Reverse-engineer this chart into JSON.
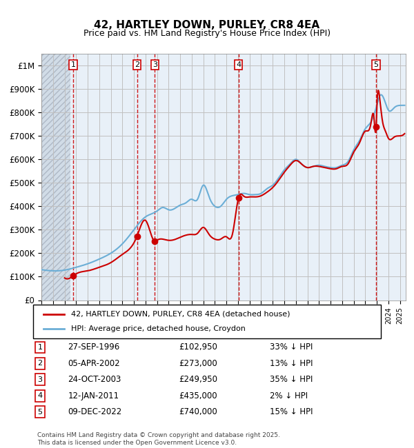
{
  "title": "42, HARTLEY DOWN, PURLEY, CR8 4EA",
  "subtitle": "Price paid vs. HM Land Registry's House Price Index (HPI)",
  "legend_line1": "42, HARTLEY DOWN, PURLEY, CR8 4EA (detached house)",
  "legend_line2": "HPI: Average price, detached house, Croydon",
  "footer_line1": "Contains HM Land Registry data © Crown copyright and database right 2025.",
  "footer_line2": "This data is licensed under the Open Government Licence v3.0.",
  "transactions": [
    {
      "num": 1,
      "date": "27-SEP-1996",
      "price": 102950,
      "pct": "33%",
      "dir": "↓"
    },
    {
      "num": 2,
      "date": "05-APR-2002",
      "price": 273000,
      "pct": "13%",
      "dir": "↓"
    },
    {
      "num": 3,
      "date": "24-OCT-2003",
      "price": 249950,
      "pct": "35%",
      "dir": "↓"
    },
    {
      "num": 4,
      "date": "12-JAN-2011",
      "price": 435000,
      "pct": "2%",
      "dir": "↓"
    },
    {
      "num": 5,
      "date": "09-DEC-2022",
      "price": 740000,
      "pct": "15%",
      "dir": "↓"
    }
  ],
  "transaction_dates_decimal": [
    1996.74,
    2002.27,
    2003.81,
    2011.04,
    2022.94
  ],
  "transaction_prices": [
    102950,
    273000,
    249950,
    435000,
    740000
  ],
  "hpi_color": "#6baed6",
  "price_color": "#cc0000",
  "marker_color": "#cc0000",
  "vline_color": "#cc0000",
  "grid_color": "#c0c0c0",
  "bg_color": "#e8f0f8",
  "hatch_color": "#b0b8c8",
  "ylim_max": 1050000,
  "xlim_start": 1994.0,
  "xlim_end": 2025.5,
  "yticks": [
    0,
    100000,
    200000,
    300000,
    400000,
    500000,
    600000,
    700000,
    800000,
    900000,
    1000000
  ],
  "ytick_labels": [
    "£0",
    "£100K",
    "£200K",
    "£300K",
    "£400K",
    "£500K",
    "£600K",
    "£700K",
    "£800K",
    "£900K",
    "£1M"
  ]
}
